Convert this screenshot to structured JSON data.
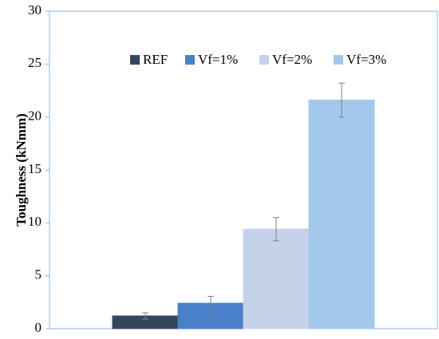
{
  "chart_data": {
    "type": "bar",
    "y_label": "Toughness (kNmm)",
    "categories": [
      null
    ],
    "series": [
      {
        "name": "REF",
        "color": "#34465e",
        "values": [
          1.2
        ],
        "errors": [
          0.3
        ]
      },
      {
        "name": "Vf=1%",
        "color": "#4a80c9",
        "values": [
          2.4
        ],
        "errors": [
          0.65
        ]
      },
      {
        "name": "Vf=2%",
        "color": "#c4d3ea",
        "values": [
          9.4
        ],
        "errors": [
          1.1
        ]
      },
      {
        "name": "Vf=3%",
        "color": "#a3c8ec",
        "values": [
          21.6
        ],
        "errors": [
          1.6
        ]
      }
    ],
    "ylim": [
      0,
      30
    ],
    "yticks": [
      0,
      5,
      10,
      15,
      20,
      25,
      30
    ],
    "grid": false
  }
}
